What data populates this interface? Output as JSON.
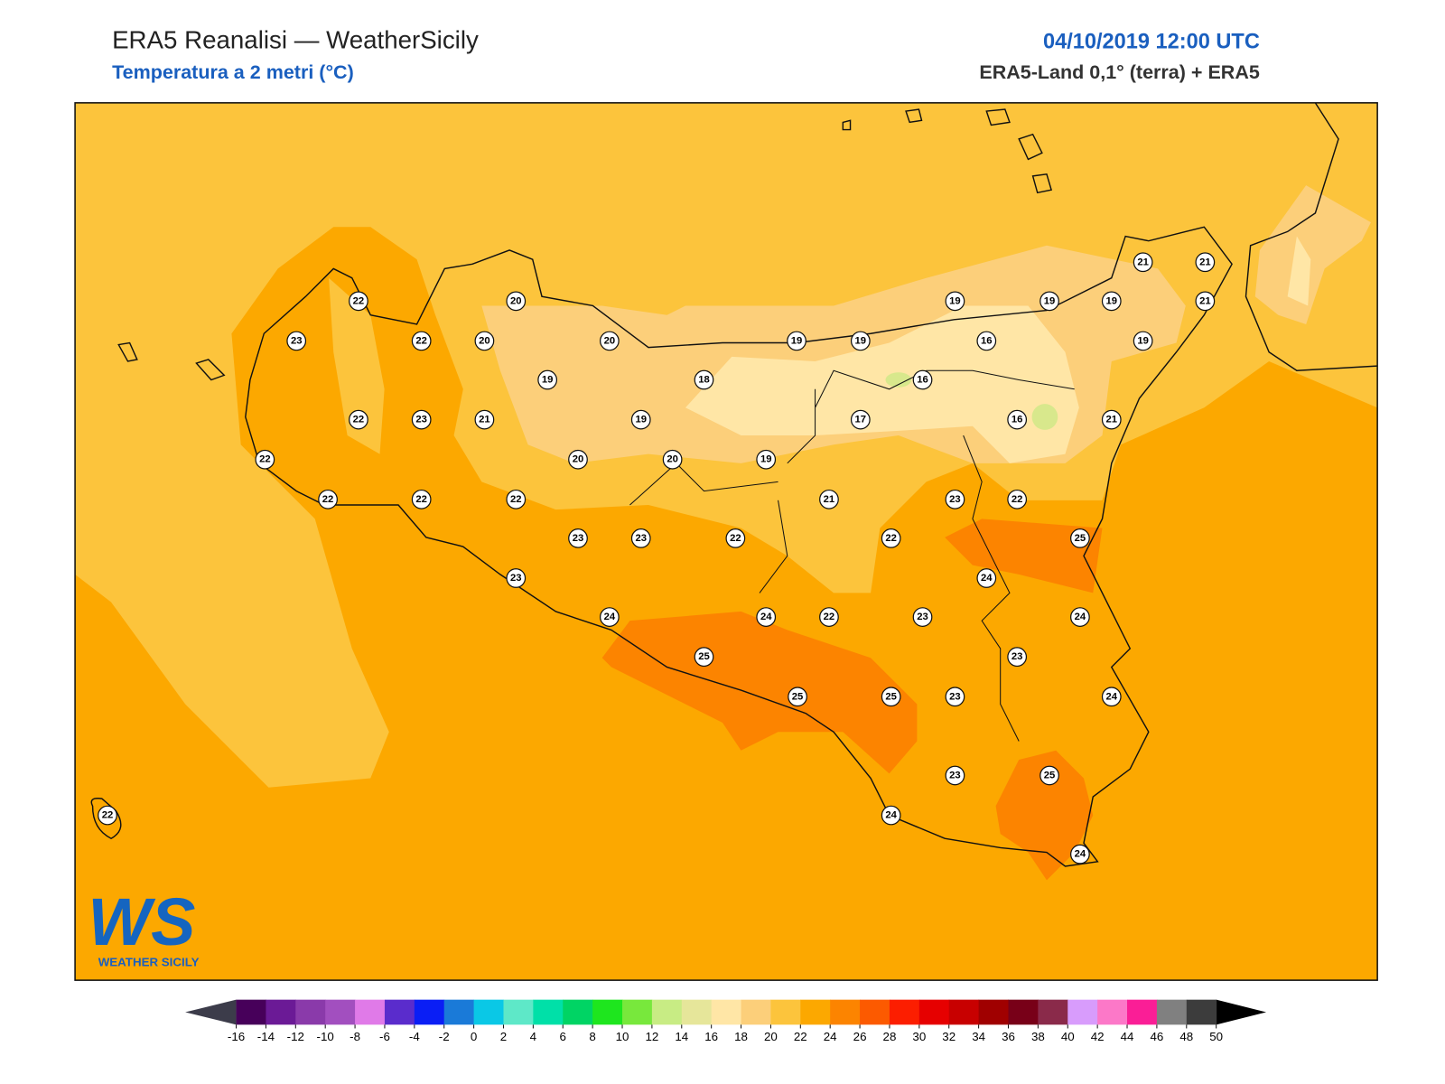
{
  "header": {
    "title": "ERA5 Reanalisi — WeatherSicily",
    "subtitle": "Temperatura a 2 metri (°C)",
    "datetime": "04/10/2019 12:00 UTC",
    "source": "ERA5-Land 0,1° (terra) + ERA5"
  },
  "map": {
    "stations": [
      22,
      20,
      23,
      22,
      20,
      20,
      19,
      19,
      19,
      19,
      19,
      21,
      21,
      21,
      16,
      19,
      19,
      18,
      16,
      22,
      23,
      21,
      19,
      17,
      16,
      21,
      22,
      20,
      20,
      19,
      22,
      22,
      22,
      21,
      23,
      22,
      23,
      23,
      22,
      22,
      25,
      23,
      24,
      24,
      24,
      22,
      23,
      24,
      25,
      23,
      25,
      25,
      23,
      24,
      23,
      25,
      24,
      22,
      24
    ]
  },
  "colorbar": {
    "ticks": [
      -16,
      -14,
      -12,
      -10,
      -8,
      -6,
      -4,
      -2,
      0,
      2,
      4,
      6,
      8,
      10,
      12,
      14,
      16,
      18,
      20,
      22,
      24,
      26,
      28,
      30,
      32,
      34,
      36,
      38,
      40,
      42,
      44,
      46,
      48,
      50
    ],
    "colors": [
      "#47005a",
      "#6b1a96",
      "#8a3aaa",
      "#a24fbf",
      "#e07ae8",
      "#5a2ccc",
      "#0a1ef5",
      "#1a7ad8",
      "#0ac8e6",
      "#5ee8c8",
      "#00e0a8",
      "#00d464",
      "#1ee61e",
      "#78e83c",
      "#c8ec84",
      "#e6e69a",
      "#ffe6a6",
      "#fccf7a",
      "#fcc43c",
      "#fca800",
      "#fc8400",
      "#fc5a00",
      "#fc1e00",
      "#e60000",
      "#c80000",
      "#a00000",
      "#780018",
      "#8a2a4a",
      "#d89cfc",
      "#fc78c8",
      "#fa1e96",
      "#808080",
      "#3c3c3c"
    ],
    "under_color": "#3c3c4a",
    "over_color": "#000000"
  },
  "logo": {
    "mark": "WS",
    "name": "WEATHER SICILY"
  }
}
